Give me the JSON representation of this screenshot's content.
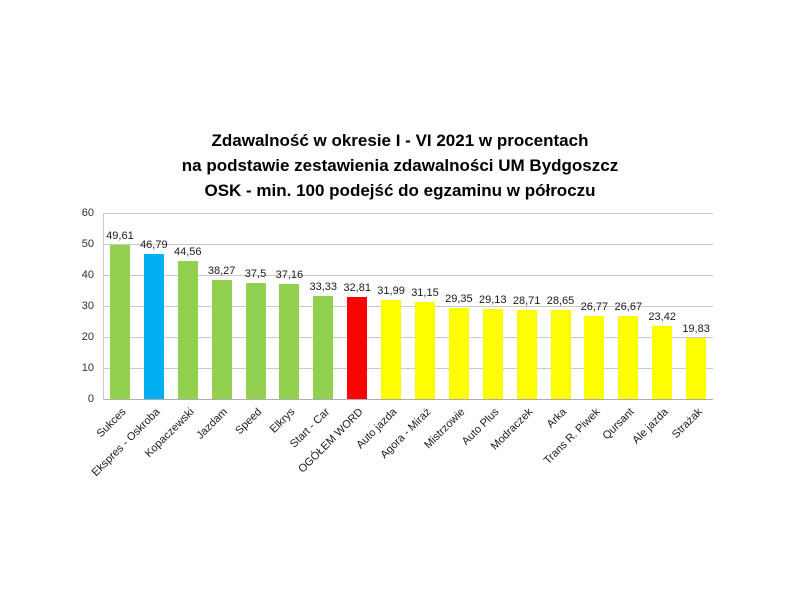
{
  "page": {
    "background": "#ffffff"
  },
  "title": {
    "line1": "Zdawalność w okresie I - VI 2021 w procentach",
    "line2": "na podstawie zestawienia zdawalności UM Bydgoszcz",
    "line3": "OSK - min. 100 podejść do egzaminu w półroczu"
  },
  "chart_data": {
    "type": "bar",
    "title": "Zdawalność w okresie I - VI 2021 w procentach na podstawie zestawienia zdawalności UM Bydgoszcz OSK - min. 100 podejść do egzaminu w półroczu",
    "categories": [
      "Sukces",
      "Ekspres - Oskroba",
      "Kopaczewski",
      "Jazdam",
      "Speed",
      "Elkrys",
      "Start - Car",
      "OGÓŁEM WORD",
      "Auto jazda",
      "Agora - Miraż",
      "Mistrzowie",
      "Auto Plus",
      "Modraczek",
      "Arka",
      "Trans R. Piwek",
      "Qursant",
      "Ale jazda",
      "Strażak"
    ],
    "values": [
      49.61,
      46.79,
      44.56,
      38.27,
      37.5,
      37.16,
      33.33,
      32.81,
      31.99,
      31.15,
      29.35,
      29.13,
      28.71,
      28.65,
      26.77,
      26.67,
      23.42,
      19.83
    ],
    "value_labels": [
      "49,61",
      "46,79",
      "44,56",
      "38,27",
      "37,5",
      "37,16",
      "33,33",
      "32,81",
      "31,99",
      "31,15",
      "29,35",
      "29,13",
      "28,71",
      "28,65",
      "26,77",
      "26,67",
      "23,42",
      "19,83"
    ],
    "bar_colors": [
      "#92D050",
      "#00B0F0",
      "#92D050",
      "#92D050",
      "#92D050",
      "#92D050",
      "#92D050",
      "#FF0000",
      "#FFFF00",
      "#FFFF00",
      "#FFFF00",
      "#FFFF00",
      "#FFFF00",
      "#FFFF00",
      "#FFFF00",
      "#FFFF00",
      "#FFFF00",
      "#FFFF00"
    ],
    "y_ticks": [
      0,
      10,
      20,
      30,
      40,
      50,
      60
    ],
    "ylim": [
      0,
      60
    ],
    "xlabel": "",
    "ylabel": "",
    "grid": "horizontal",
    "legend": "none",
    "grid_color": "#c9c9c9",
    "text_color": "#1a1a1a"
  }
}
